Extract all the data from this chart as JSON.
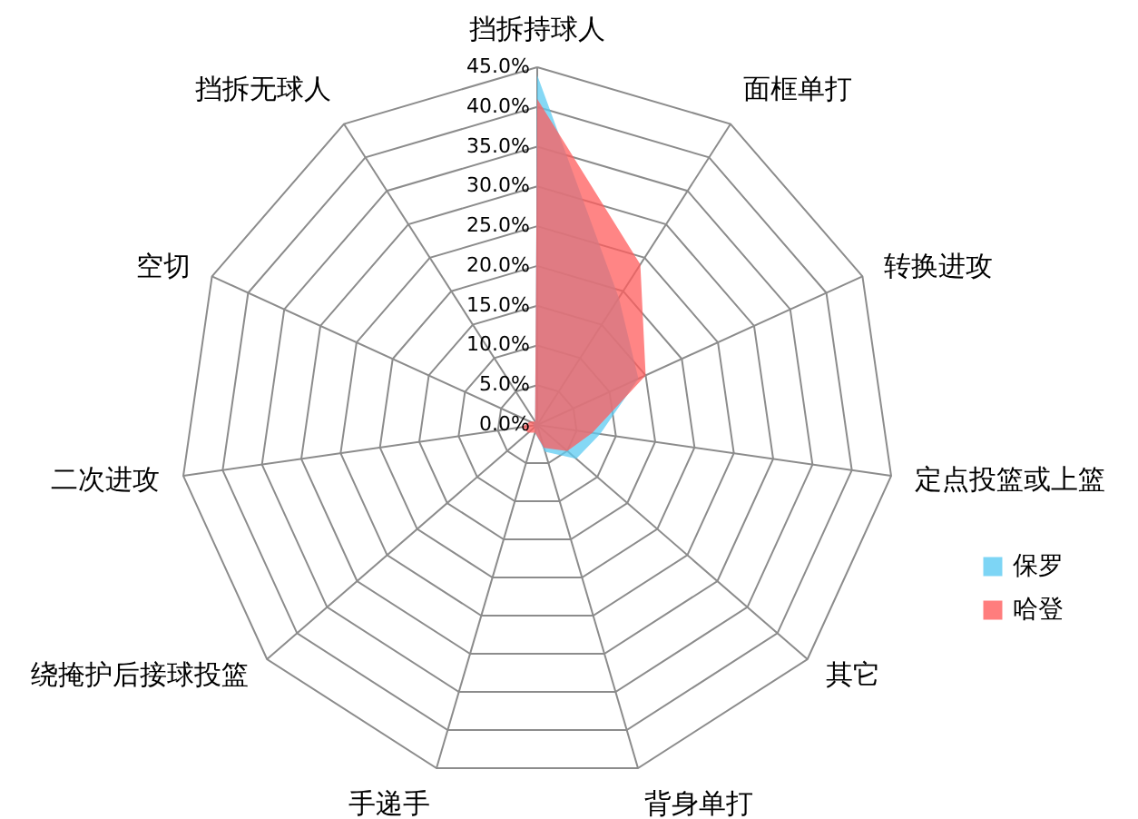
{
  "chart_data": {
    "type": "radar",
    "categories": [
      "挡拆持球人",
      "面框单打",
      "转换进攻",
      "定点投篮或上篮",
      "其它",
      "背身单打",
      "手递手",
      "绕掩护后接球投篮",
      "二次进攻",
      "空切",
      "挡拆无球人"
    ],
    "series": [
      {
        "name": "保罗",
        "color": "#5ccbf2",
        "values": [
          44,
          19,
          14,
          8,
          6.5,
          3.5,
          1,
          0.5,
          0.5,
          0.5,
          0.5
        ]
      },
      {
        "name": "哈登",
        "color": "#ff5c5c",
        "values": [
          41,
          24,
          15,
          7,
          5,
          3,
          1,
          1.5,
          2,
          1,
          0.5
        ]
      }
    ],
    "ylim": [
      0,
      45
    ],
    "yticks": [
      {
        "value": 0,
        "label": "0.0%"
      },
      {
        "value": 5,
        "label": "5.0%"
      },
      {
        "value": 10,
        "label": "10.0%"
      },
      {
        "value": 15,
        "label": "15.0%"
      },
      {
        "value": 20,
        "label": "20.0%"
      },
      {
        "value": 25,
        "label": "25.0%"
      },
      {
        "value": 30,
        "label": "30.0%"
      },
      {
        "value": 35,
        "label": "35.0%"
      },
      {
        "value": 40,
        "label": "40.0%"
      },
      {
        "value": 45,
        "label": "45.0%"
      }
    ],
    "grid": true,
    "legend": "right",
    "marker": "none"
  }
}
